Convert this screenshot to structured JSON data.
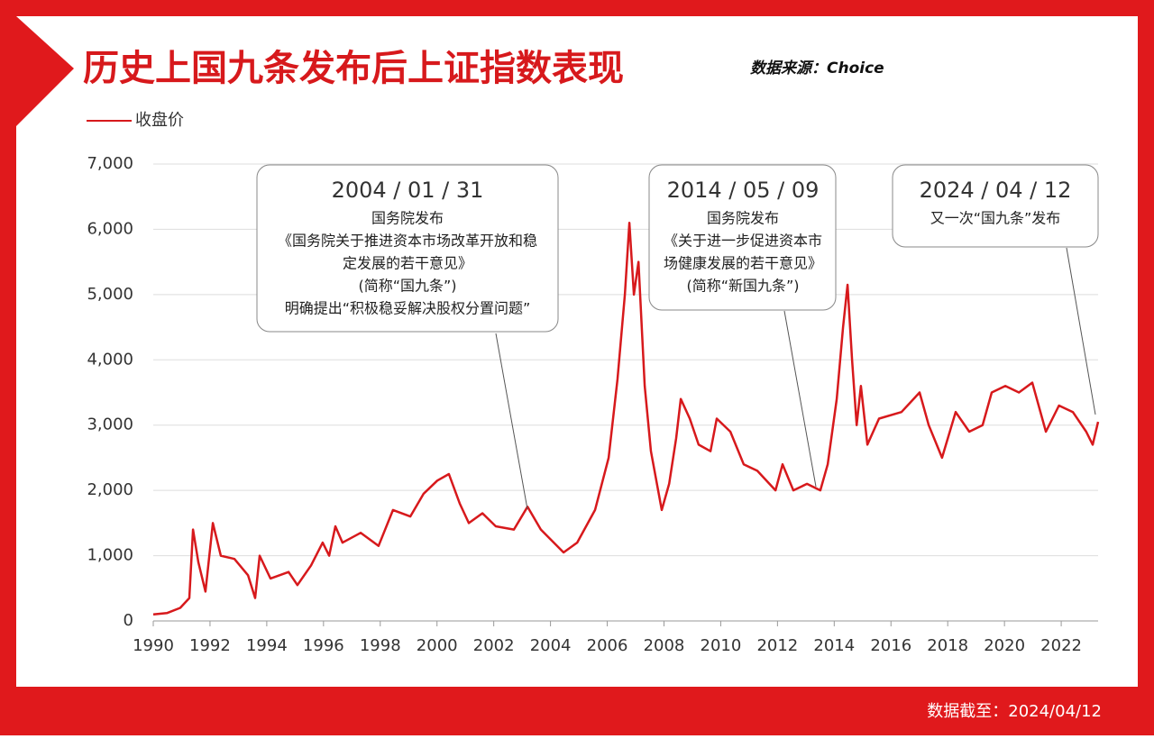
{
  "chart_data": {
    "type": "line",
    "title": "历史上国九条发布后上证指数表现",
    "source": "数据来源：Choice",
    "footer": "数据截至：2024/04/12",
    "x": [
      1990.0,
      1990.48,
      1990.95,
      1991.27,
      1991.4,
      1991.59,
      1991.84,
      1992.1,
      1992.38,
      1992.86,
      1993.34,
      1993.59,
      1993.75,
      1994.13,
      1994.77,
      1995.08,
      1995.56,
      1995.97,
      1996.2,
      1996.42,
      1996.67,
      1997.31,
      1997.94,
      1998.45,
      1999.06,
      1999.53,
      2000.01,
      2000.42,
      2000.8,
      2001.12,
      2001.6,
      2002.07,
      2002.71,
      2003.19,
      2003.66,
      2004.46,
      2004.94,
      2005.57,
      2006.05,
      2006.36,
      2006.62,
      2006.78,
      2006.94,
      2007.1,
      2007.32,
      2007.54,
      2007.92,
      2008.18,
      2008.43,
      2008.59,
      2008.91,
      2009.22,
      2009.64,
      2009.86,
      2010.34,
      2010.81,
      2011.29,
      2011.93,
      2012.18,
      2012.56,
      2013.04,
      2013.51,
      2013.77,
      2014.09,
      2014.31,
      2014.47,
      2014.63,
      2014.79,
      2014.94,
      2015.17,
      2015.58,
      2016.37,
      2017.01,
      2017.33,
      2017.8,
      2018.28,
      2018.76,
      2019.23,
      2019.55,
      2020.03,
      2020.51,
      2020.98,
      2021.46,
      2021.92,
      2022.41,
      2022.88,
      2023.11,
      2023.3
    ],
    "series": [
      {
        "name": "收盘价",
        "color": "#d7191c",
        "values": [
          100,
          120,
          200,
          350,
          1400,
          900,
          450,
          1500,
          1000,
          950,
          700,
          350,
          1000,
          650,
          750,
          550,
          850,
          1200,
          1000,
          1450,
          1200,
          1350,
          1150,
          1700,
          1600,
          1950,
          2150,
          2250,
          1800,
          1500,
          1650,
          1450,
          1400,
          1750,
          1400,
          1050,
          1200,
          1700,
          2500,
          3700,
          5000,
          6100,
          5000,
          5500,
          3600,
          2600,
          1700,
          2100,
          2800,
          3400,
          3100,
          2700,
          2600,
          3100,
          2900,
          2400,
          2300,
          2000,
          2400,
          2000,
          2100,
          2000,
          2400,
          3400,
          4500,
          5150,
          4000,
          3000,
          3600,
          2700,
          3100,
          3200,
          3500,
          3000,
          2500,
          3200,
          2900,
          3000,
          3500,
          3600,
          3500,
          3650,
          2900,
          3300,
          3200,
          2900,
          2700,
          3050
        ]
      }
    ],
    "xlim": [
      1990,
      2023.3
    ],
    "xticks": [
      1990,
      1992,
      1994,
      1996,
      1998,
      2000,
      2002,
      2004,
      2006,
      2008,
      2010,
      2012,
      2014,
      2016,
      2018,
      2020,
      2022
    ],
    "ylim": [
      0,
      7000
    ],
    "yticks": [
      0,
      {
        "value": 1000,
        "label": "1,000"
      },
      {
        "value": 2000,
        "label": "2,000"
      },
      {
        "value": 3000,
        "label": "3,000"
      },
      {
        "value": 4000,
        "label": "4,000"
      },
      {
        "value": 5000,
        "label": "5,000"
      },
      {
        "value": 6000,
        "label": "6,000"
      },
      {
        "value": 7000,
        "label": "7,000"
      }
    ],
    "grid": true,
    "annotations": [
      {
        "date": "2004 / 01 / 31",
        "lines": [
          "国务院发布",
          "《国务院关于推进资本市场改革开放和稳",
          "定发展的若干意见》",
          "(简称“国九条”)",
          "明确提出“积极稳妥解决股权分置问题”"
        ]
      },
      {
        "date": "2014 / 05 / 09",
        "lines": [
          "国务院发布",
          "《关于进一步促进资本市",
          "场健康发展的若干意见》",
          "(简称“新国九条”)"
        ]
      },
      {
        "date": "2024 / 04 / 12",
        "lines": [
          "又一次“国九条”发布"
        ]
      }
    ]
  }
}
